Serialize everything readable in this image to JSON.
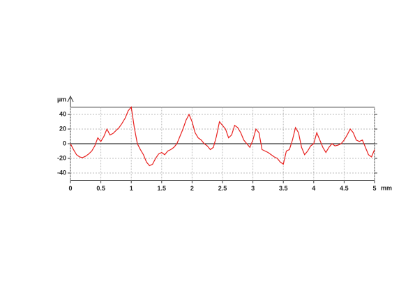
{
  "chart_data": {
    "type": "line",
    "x_label": "mm",
    "y_label": "µm",
    "x": [
      0,
      0.05,
      0.1,
      0.15,
      0.2,
      0.25,
      0.3,
      0.35,
      0.4,
      0.45,
      0.5,
      0.55,
      0.6,
      0.65,
      0.7,
      0.75,
      0.8,
      0.85,
      0.9,
      0.95,
      1.0,
      1.05,
      1.1,
      1.15,
      1.2,
      1.25,
      1.3,
      1.35,
      1.4,
      1.45,
      1.5,
      1.55,
      1.6,
      1.65,
      1.7,
      1.75,
      1.8,
      1.85,
      1.9,
      1.95,
      2.0,
      2.05,
      2.1,
      2.15,
      2.2,
      2.25,
      2.3,
      2.35,
      2.4,
      2.45,
      2.5,
      2.55,
      2.6,
      2.65,
      2.7,
      2.75,
      2.8,
      2.85,
      2.9,
      2.95,
      3.0,
      3.05,
      3.1,
      3.15,
      3.2,
      3.25,
      3.3,
      3.35,
      3.4,
      3.45,
      3.5,
      3.55,
      3.6,
      3.65,
      3.7,
      3.75,
      3.8,
      3.85,
      3.9,
      3.95,
      4.0,
      4.05,
      4.1,
      4.15,
      4.2,
      4.25,
      4.3,
      4.35,
      4.4,
      4.45,
      4.5,
      4.55,
      4.6,
      4.65,
      4.7,
      4.75,
      4.8,
      4.85,
      4.9,
      4.95,
      5.0
    ],
    "series": [
      {
        "color": "#e8201e",
        "values": [
          0,
          -8,
          -15,
          -18,
          -19,
          -17,
          -14,
          -10,
          -3,
          8,
          3,
          10,
          20,
          12,
          14,
          18,
          22,
          28,
          35,
          45,
          50,
          22,
          0,
          -8,
          -15,
          -25,
          -30,
          -28,
          -20,
          -14,
          -12,
          -15,
          -10,
          -8,
          -5,
          0,
          10,
          20,
          32,
          40,
          30,
          15,
          8,
          5,
          0,
          -3,
          -8,
          -5,
          10,
          30,
          25,
          20,
          8,
          12,
          25,
          22,
          15,
          5,
          0,
          -5,
          5,
          20,
          15,
          -8,
          -10,
          -12,
          -15,
          -18,
          -20,
          -25,
          -28,
          -10,
          -8,
          5,
          22,
          15,
          -5,
          -15,
          -10,
          -3,
          0,
          15,
          5,
          -5,
          -12,
          -5,
          0,
          -3,
          -2,
          0,
          5,
          12,
          20,
          15,
          5,
          3,
          5,
          -5,
          -15,
          -18,
          -8
        ]
      }
    ],
    "xlim": [
      0,
      5
    ],
    "ylim": [
      -50,
      50
    ],
    "xticks": [
      0,
      0.5,
      1,
      1.5,
      2,
      2.5,
      3,
      3.5,
      4,
      4.5,
      5
    ],
    "yticks": [
      -40,
      -20,
      0,
      20,
      40
    ],
    "grid": true
  }
}
